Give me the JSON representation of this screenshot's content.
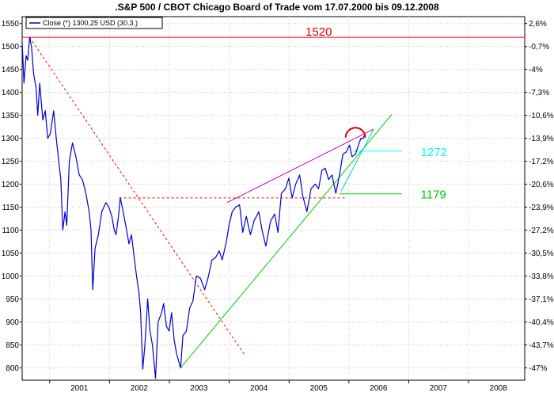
{
  "chart_data": {
    "type": "line",
    "title": ".S&P 500 / CBOT Chicago Board of Trade vom 17.07.2000 bis 09.12.2008",
    "legend": {
      "label": "Close (*) 1300,25 USD (30.3.)",
      "placement": "top-left"
    },
    "x_axis": {
      "tick_labels": [
        "2001",
        "2002",
        "2003",
        "2004",
        "2005",
        "2006",
        "2007",
        "2008"
      ],
      "range": [
        "2000-07-17",
        "2008-12-09"
      ]
    },
    "y_axis_left": {
      "tick_values": [
        800,
        850,
        900,
        950,
        1000,
        1050,
        1100,
        1150,
        1200,
        1250,
        1300,
        1350,
        1400,
        1450,
        1500,
        1550
      ],
      "range": [
        773,
        1565
      ]
    },
    "y_axis_right": {
      "tick_labels": [
        "2,6%",
        "-0,7%",
        "-4%",
        "-7,3%",
        "-10,6%",
        "-13,9%",
        "-17,2%",
        "-20,6%",
        "-23,9%",
        "-27,2%",
        "-30,5%",
        "-33,8%",
        "-37,1%",
        "-40,4%",
        "-43,7%",
        "-47%"
      ],
      "tick_values": [
        1550,
        1500,
        1450,
        1400,
        1350,
        1300,
        1250,
        1200,
        1150,
        1100,
        1050,
        1000,
        950,
        900,
        850,
        800
      ]
    },
    "grid": true,
    "series": [
      {
        "color": "#0000cc",
        "points": [
          [
            "2000-07-17",
            1510
          ],
          [
            "2000-07-28",
            1420
          ],
          [
            "2000-08-10",
            1480
          ],
          [
            "2000-08-20",
            1470
          ],
          [
            "2000-09-01",
            1520
          ],
          [
            "2000-09-12",
            1500
          ],
          [
            "2000-09-25",
            1440
          ],
          [
            "2000-10-10",
            1410
          ],
          [
            "2000-10-20",
            1350
          ],
          [
            "2000-11-01",
            1420
          ],
          [
            "2000-11-20",
            1340
          ],
          [
            "2000-12-05",
            1360
          ],
          [
            "2000-12-20",
            1300
          ],
          [
            "2001-01-05",
            1310
          ],
          [
            "2001-01-25",
            1360
          ],
          [
            "2001-02-10",
            1300
          ],
          [
            "2001-02-25",
            1250
          ],
          [
            "2001-03-10",
            1210
          ],
          [
            "2001-03-22",
            1100
          ],
          [
            "2001-04-05",
            1140
          ],
          [
            "2001-04-15",
            1110
          ],
          [
            "2001-05-01",
            1250
          ],
          [
            "2001-05-20",
            1290
          ],
          [
            "2001-06-10",
            1260
          ],
          [
            "2001-06-30",
            1220
          ],
          [
            "2001-07-20",
            1210
          ],
          [
            "2001-08-10",
            1180
          ],
          [
            "2001-08-30",
            1140
          ],
          [
            "2001-09-10",
            1100
          ],
          [
            "2001-09-21",
            970
          ],
          [
            "2001-10-05",
            1060
          ],
          [
            "2001-10-25",
            1090
          ],
          [
            "2001-11-15",
            1140
          ],
          [
            "2001-12-10",
            1160
          ],
          [
            "2001-12-28",
            1150
          ],
          [
            "2002-01-15",
            1130
          ],
          [
            "2002-01-30",
            1100
          ],
          [
            "2002-02-10",
            1090
          ],
          [
            "2002-02-25",
            1130
          ],
          [
            "2002-03-08",
            1170
          ],
          [
            "2002-03-20",
            1150
          ],
          [
            "2002-04-10",
            1110
          ],
          [
            "2002-04-30",
            1070
          ],
          [
            "2002-05-15",
            1090
          ],
          [
            "2002-06-01",
            1040
          ],
          [
            "2002-06-15",
            1000
          ],
          [
            "2002-07-01",
            960
          ],
          [
            "2002-07-10",
            920
          ],
          [
            "2002-07-23",
            797
          ],
          [
            "2002-08-05",
            850
          ],
          [
            "2002-08-22",
            950
          ],
          [
            "2002-09-05",
            880
          ],
          [
            "2002-09-20",
            850
          ],
          [
            "2002-10-09",
            777
          ],
          [
            "2002-10-25",
            900
          ],
          [
            "2002-11-15",
            920
          ],
          [
            "2002-11-27",
            940
          ],
          [
            "2002-12-15",
            890
          ],
          [
            "2002-12-31",
            880
          ],
          [
            "2003-01-15",
            920
          ],
          [
            "2003-01-31",
            860
          ],
          [
            "2003-02-15",
            830
          ],
          [
            "2003-03-11",
            800
          ],
          [
            "2003-03-25",
            870
          ],
          [
            "2003-04-15",
            880
          ],
          [
            "2003-05-05",
            930
          ],
          [
            "2003-05-25",
            945
          ],
          [
            "2003-06-15",
            1000
          ],
          [
            "2003-07-10",
            995
          ],
          [
            "2003-08-05",
            970
          ],
          [
            "2003-08-25",
            995
          ],
          [
            "2003-09-18",
            1035
          ],
          [
            "2003-10-10",
            1040
          ],
          [
            "2003-11-01",
            1055
          ],
          [
            "2003-11-20",
            1035
          ],
          [
            "2003-12-15",
            1075
          ],
          [
            "2003-12-31",
            1110
          ],
          [
            "2004-01-20",
            1140
          ],
          [
            "2004-02-10",
            1150
          ],
          [
            "2004-03-05",
            1155
          ],
          [
            "2004-03-24",
            1095
          ],
          [
            "2004-04-15",
            1130
          ],
          [
            "2004-05-10",
            1090
          ],
          [
            "2004-06-01",
            1120
          ],
          [
            "2004-06-30",
            1140
          ],
          [
            "2004-07-20",
            1100
          ],
          [
            "2004-08-12",
            1065
          ],
          [
            "2004-09-10",
            1120
          ],
          [
            "2004-10-05",
            1135
          ],
          [
            "2004-10-25",
            1095
          ],
          [
            "2004-11-15",
            1180
          ],
          [
            "2004-12-10",
            1190
          ],
          [
            "2004-12-30",
            1213
          ],
          [
            "2005-01-20",
            1170
          ],
          [
            "2005-02-10",
            1200
          ],
          [
            "2005-03-07",
            1220
          ],
          [
            "2005-03-25",
            1175
          ],
          [
            "2005-04-20",
            1140
          ],
          [
            "2005-05-15",
            1190
          ],
          [
            "2005-06-10",
            1200
          ],
          [
            "2005-06-30",
            1190
          ],
          [
            "2005-07-20",
            1230
          ],
          [
            "2005-08-10",
            1235
          ],
          [
            "2005-08-30",
            1210
          ],
          [
            "2005-09-20",
            1220
          ],
          [
            "2005-10-13",
            1180
          ],
          [
            "2005-11-05",
            1220
          ],
          [
            "2005-11-25",
            1265
          ],
          [
            "2005-12-15",
            1270
          ],
          [
            "2006-01-05",
            1285
          ],
          [
            "2006-01-20",
            1260
          ],
          [
            "2006-02-10",
            1265
          ],
          [
            "2006-02-28",
            1285
          ],
          [
            "2006-03-15",
            1300
          ],
          [
            "2006-03-30",
            1300
          ],
          [
            "2006-04-10",
            1310
          ]
        ]
      }
    ],
    "annotations": [
      {
        "text": "1520",
        "color": "#dd0000",
        "y": 1520
      },
      {
        "text": "1272",
        "color": "#00ffff",
        "y": 1272
      },
      {
        "text": "1179",
        "color": "#00cc00",
        "y": 1179
      }
    ],
    "trendlines": [
      {
        "color": "#ff0000",
        "style": "solid",
        "from": [
          "2000-07-17",
          1520
        ],
        "to": [
          "2008-12-09",
          1520
        ]
      },
      {
        "color": "#ff0000",
        "style": "dashed",
        "from": [
          "2000-09-01",
          1520
        ],
        "to": [
          "2004-04-01",
          830
        ]
      },
      {
        "color": "#ff0000",
        "style": "dashed",
        "from": [
          "2002-03-01",
          1170
        ],
        "to": [
          "2005-12-20",
          1170
        ]
      },
      {
        "color": "#cc00cc",
        "style": "solid",
        "from": [
          "2003-12-20",
          1160
        ],
        "to": [
          "2006-06-01",
          1320
        ]
      },
      {
        "color": "#00cc00",
        "style": "solid",
        "from": [
          "2003-03-11",
          800
        ],
        "to": [
          "2006-09-20",
          1352
        ]
      },
      {
        "color": "#00cccc",
        "style": "solid",
        "from": [
          "2005-11-15",
          1185
        ],
        "to": [
          "2006-06-01",
          1320
        ]
      },
      {
        "color": "#00ffff",
        "style": "solid",
        "from": [
          "2006-01-25",
          1272
        ],
        "to": [
          "2006-11-20",
          1272
        ]
      },
      {
        "color": "#00cc00",
        "style": "solid",
        "from": [
          "2005-11-05",
          1179
        ],
        "to": [
          "2006-11-20",
          1179
        ]
      }
    ],
    "top_arc": {
      "color": "#dd0000",
      "center": [
        "2006-02-10",
        1305
      ],
      "radius_days": 60
    }
  }
}
